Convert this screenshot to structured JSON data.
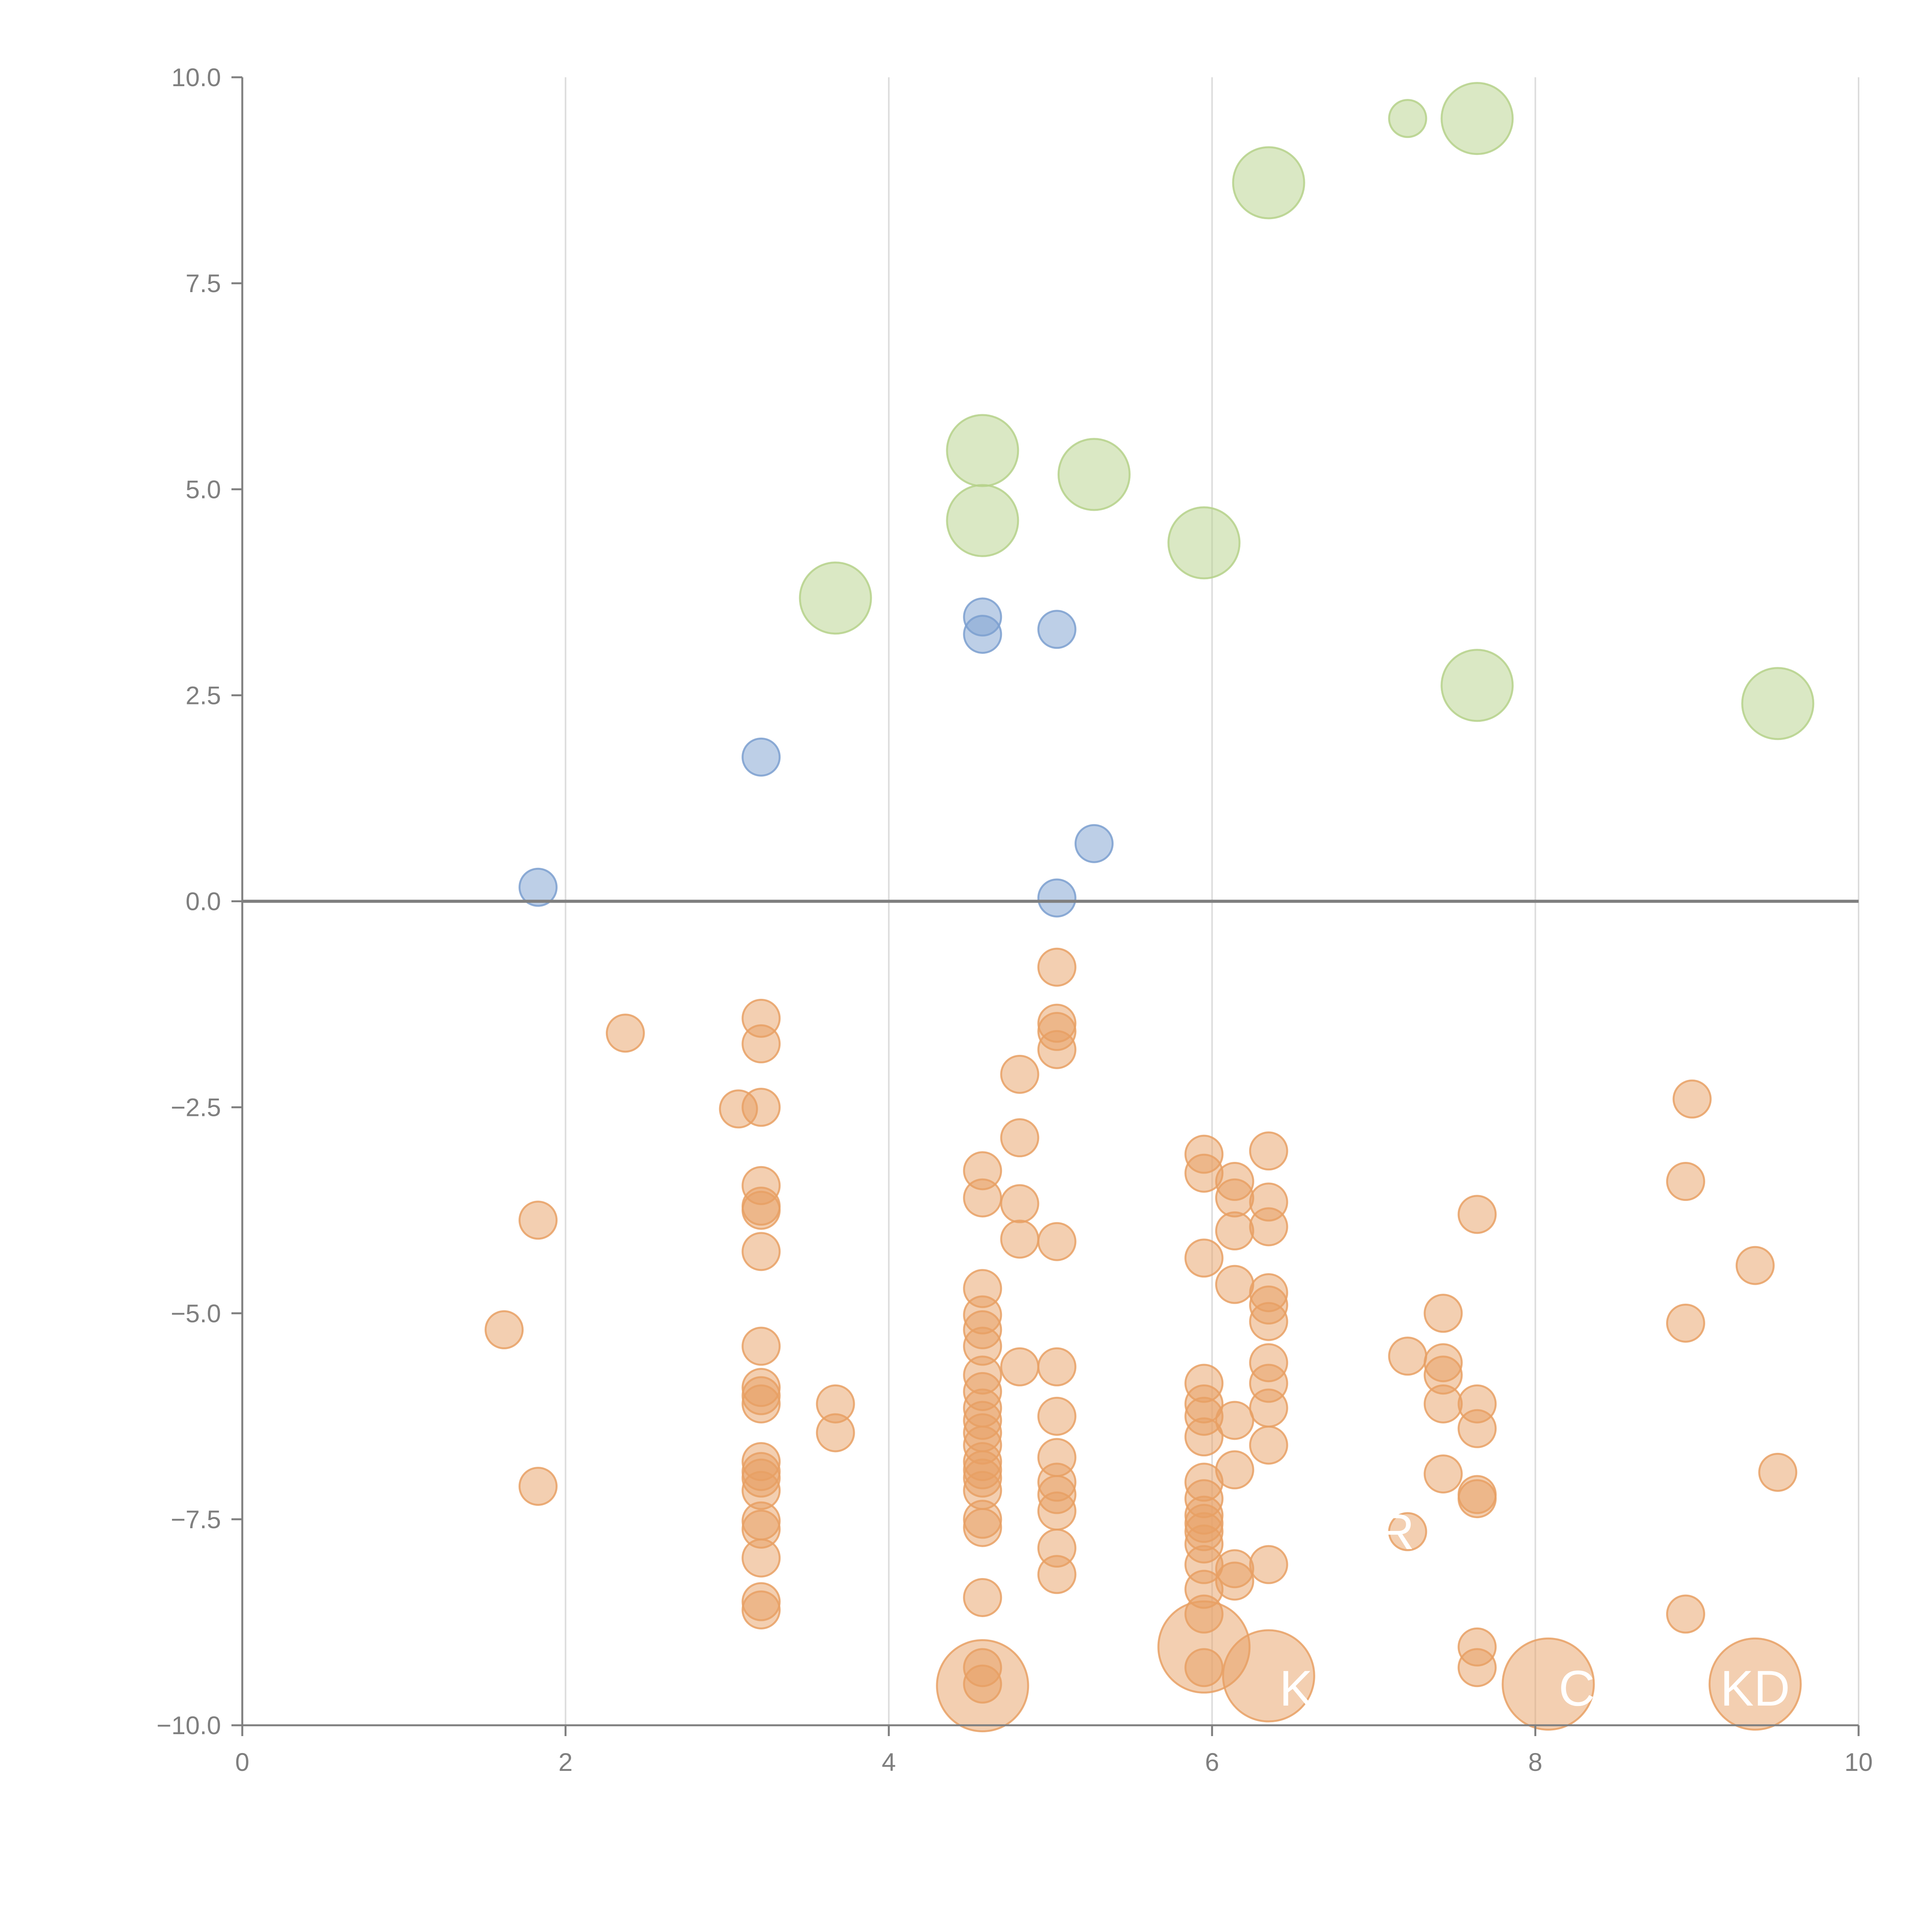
{
  "chart_data": {
    "type": "scatter",
    "title": "",
    "xlabel": "",
    "ylabel": "",
    "xlim": [
      0,
      10
    ],
    "ylim": [
      -10,
      10
    ],
    "x_ticks": [
      "0",
      "2",
      "4",
      "6",
      "8",
      "10"
    ],
    "y_ticks": [
      "−10.0",
      "−7.5",
      "−5.0",
      "−2.5",
      "0.0",
      "2.5",
      "5.0",
      "7.5",
      "10.0"
    ],
    "grid": "vertical",
    "colors": {
      "blue": "#7b9fcf",
      "green": "#b5d18a",
      "orange": "#e8a064"
    },
    "series": [
      {
        "name": "blue",
        "color": "#7b9fcf",
        "points": [
          {
            "x": 1.83,
            "y": 0.17,
            "r": 1
          },
          {
            "x": 3.21,
            "y": 1.75,
            "r": 1
          },
          {
            "x": 4.58,
            "y": 3.45,
            "r": 1
          },
          {
            "x": 4.58,
            "y": 3.24,
            "r": 1
          },
          {
            "x": 5.04,
            "y": 3.3,
            "r": 1
          },
          {
            "x": 5.27,
            "y": 0.7,
            "r": 1
          },
          {
            "x": 5.04,
            "y": 0.04,
            "r": 1
          }
        ]
      },
      {
        "name": "green",
        "color": "#b5d18a",
        "points": [
          {
            "x": 3.67,
            "y": 3.68,
            "r": 2
          },
          {
            "x": 4.58,
            "y": 5.47,
            "r": 2
          },
          {
            "x": 4.58,
            "y": 4.62,
            "r": 2
          },
          {
            "x": 5.27,
            "y": 5.18,
            "r": 2
          },
          {
            "x": 5.95,
            "y": 4.35,
            "r": 2
          },
          {
            "x": 6.35,
            "y": 8.72,
            "r": 2
          },
          {
            "x": 7.21,
            "y": 9.5,
            "r": 1
          },
          {
            "x": 7.64,
            "y": 9.5,
            "r": 2
          },
          {
            "x": 7.64,
            "y": 2.62,
            "r": 2
          },
          {
            "x": 9.5,
            "y": 2.4,
            "r": 2
          }
        ]
      },
      {
        "name": "orange",
        "color": "#e8a064",
        "points": [
          {
            "x": 1.62,
            "y": -5.2,
            "r": 1
          },
          {
            "x": 1.83,
            "y": -3.87,
            "r": 1
          },
          {
            "x": 1.83,
            "y": -7.1,
            "r": 1
          },
          {
            "x": 2.37,
            "y": -1.6,
            "r": 1
          },
          {
            "x": 3.07,
            "y": -2.52,
            "r": 1
          },
          {
            "x": 3.21,
            "y": -1.42,
            "r": 1
          },
          {
            "x": 3.21,
            "y": -1.73,
            "r": 1
          },
          {
            "x": 3.21,
            "y": -2.5,
            "r": 1
          },
          {
            "x": 3.21,
            "y": -3.45,
            "r": 1
          },
          {
            "x": 3.21,
            "y": -3.7,
            "r": 1
          },
          {
            "x": 3.21,
            "y": -3.75,
            "r": 1
          },
          {
            "x": 3.21,
            "y": -4.25,
            "r": 1
          },
          {
            "x": 3.21,
            "y": -5.4,
            "r": 1
          },
          {
            "x": 3.21,
            "y": -5.9,
            "r": 1
          },
          {
            "x": 3.21,
            "y": -6.0,
            "r": 1
          },
          {
            "x": 3.21,
            "y": -6.1,
            "r": 1
          },
          {
            "x": 3.21,
            "y": -6.8,
            "r": 1
          },
          {
            "x": 3.21,
            "y": -6.92,
            "r": 1
          },
          {
            "x": 3.21,
            "y": -7.0,
            "r": 1
          },
          {
            "x": 3.21,
            "y": -7.15,
            "r": 1
          },
          {
            "x": 3.21,
            "y": -7.52,
            "r": 1
          },
          {
            "x": 3.21,
            "y": -7.62,
            "r": 1
          },
          {
            "x": 3.21,
            "y": -7.97,
            "r": 1
          },
          {
            "x": 3.21,
            "y": -8.5,
            "r": 1
          },
          {
            "x": 3.21,
            "y": -8.6,
            "r": 1
          },
          {
            "x": 3.67,
            "y": -6.1,
            "r": 1
          },
          {
            "x": 3.67,
            "y": -6.45,
            "r": 1
          },
          {
            "x": 4.58,
            "y": -3.27,
            "r": 1
          },
          {
            "x": 4.58,
            "y": -3.6,
            "r": 1
          },
          {
            "x": 4.58,
            "y": -4.7,
            "r": 1
          },
          {
            "x": 4.58,
            "y": -5.02,
            "r": 1
          },
          {
            "x": 4.58,
            "y": -5.2,
            "r": 1
          },
          {
            "x": 4.58,
            "y": -5.4,
            "r": 1
          },
          {
            "x": 4.58,
            "y": -5.75,
            "r": 1
          },
          {
            "x": 4.58,
            "y": -5.95,
            "r": 1
          },
          {
            "x": 4.58,
            "y": -6.15,
            "r": 1
          },
          {
            "x": 4.58,
            "y": -6.3,
            "r": 1
          },
          {
            "x": 4.58,
            "y": -6.45,
            "r": 1
          },
          {
            "x": 4.58,
            "y": -6.6,
            "r": 1
          },
          {
            "x": 4.58,
            "y": -6.8,
            "r": 1
          },
          {
            "x": 4.58,
            "y": -6.9,
            "r": 1
          },
          {
            "x": 4.58,
            "y": -7.0,
            "r": 1
          },
          {
            "x": 4.58,
            "y": -7.15,
            "r": 1
          },
          {
            "x": 4.58,
            "y": -7.5,
            "r": 1
          },
          {
            "x": 4.58,
            "y": -7.6,
            "r": 1
          },
          {
            "x": 4.58,
            "y": -8.45,
            "r": 1
          },
          {
            "x": 4.58,
            "y": -9.3,
            "r": 1
          },
          {
            "x": 4.58,
            "y": -9.5,
            "r": 1
          },
          {
            "x": 4.58,
            "y": -9.52,
            "r": 3
          },
          {
            "x": 4.81,
            "y": -2.1,
            "r": 1
          },
          {
            "x": 4.81,
            "y": -2.87,
            "r": 1
          },
          {
            "x": 4.81,
            "y": -3.67,
            "r": 1
          },
          {
            "x": 4.81,
            "y": -4.1,
            "r": 1
          },
          {
            "x": 4.81,
            "y": -5.65,
            "r": 1
          },
          {
            "x": 5.04,
            "y": -0.8,
            "r": 1
          },
          {
            "x": 5.04,
            "y": -1.48,
            "r": 1
          },
          {
            "x": 5.04,
            "y": -1.58,
            "r": 1
          },
          {
            "x": 5.04,
            "y": -1.8,
            "r": 1
          },
          {
            "x": 5.04,
            "y": -4.13,
            "r": 1
          },
          {
            "x": 5.04,
            "y": -5.65,
            "r": 1
          },
          {
            "x": 5.04,
            "y": -6.25,
            "r": 1
          },
          {
            "x": 5.04,
            "y": -6.75,
            "r": 1
          },
          {
            "x": 5.04,
            "y": -7.05,
            "r": 1
          },
          {
            "x": 5.04,
            "y": -7.2,
            "r": 1
          },
          {
            "x": 5.04,
            "y": -7.4,
            "r": 1
          },
          {
            "x": 5.04,
            "y": -7.85,
            "r": 1
          },
          {
            "x": 5.04,
            "y": -8.17,
            "r": 1
          },
          {
            "x": 5.95,
            "y": -3.07,
            "r": 1
          },
          {
            "x": 5.95,
            "y": -3.3,
            "r": 1
          },
          {
            "x": 5.95,
            "y": -4.33,
            "r": 1
          },
          {
            "x": 5.95,
            "y": -5.85,
            "r": 1
          },
          {
            "x": 5.95,
            "y": -6.1,
            "r": 1
          },
          {
            "x": 5.95,
            "y": -6.25,
            "r": 1
          },
          {
            "x": 5.95,
            "y": -6.5,
            "r": 1
          },
          {
            "x": 5.95,
            "y": -7.05,
            "r": 1
          },
          {
            "x": 5.95,
            "y": -7.25,
            "r": 1
          },
          {
            "x": 5.95,
            "y": -7.45,
            "r": 1
          },
          {
            "x": 5.95,
            "y": -7.55,
            "r": 1
          },
          {
            "x": 5.95,
            "y": -7.65,
            "r": 1
          },
          {
            "x": 5.95,
            "y": -7.8,
            "r": 1
          },
          {
            "x": 5.95,
            "y": -8.05,
            "r": 1
          },
          {
            "x": 5.95,
            "y": -8.35,
            "r": 1
          },
          {
            "x": 5.95,
            "y": -8.65,
            "r": 1
          },
          {
            "x": 5.95,
            "y": -9.3,
            "r": 1
          },
          {
            "x": 5.95,
            "y": -9.05,
            "r": 3
          },
          {
            "x": 6.14,
            "y": -3.4,
            "r": 1
          },
          {
            "x": 6.14,
            "y": -3.6,
            "r": 1
          },
          {
            "x": 6.14,
            "y": -4.0,
            "r": 1
          },
          {
            "x": 6.14,
            "y": -4.65,
            "r": 1
          },
          {
            "x": 6.14,
            "y": -6.3,
            "r": 1
          },
          {
            "x": 6.14,
            "y": -6.9,
            "r": 1
          },
          {
            "x": 6.14,
            "y": -8.1,
            "r": 1
          },
          {
            "x": 6.14,
            "y": -8.25,
            "r": 1
          },
          {
            "x": 6.35,
            "y": -3.03,
            "r": 1
          },
          {
            "x": 6.35,
            "y": -3.65,
            "r": 1
          },
          {
            "x": 6.35,
            "y": -3.95,
            "r": 1
          },
          {
            "x": 6.35,
            "y": -4.75,
            "r": 1
          },
          {
            "x": 6.35,
            "y": -4.9,
            "r": 1
          },
          {
            "x": 6.35,
            "y": -5.1,
            "r": 1
          },
          {
            "x": 6.35,
            "y": -5.6,
            "r": 1
          },
          {
            "x": 6.35,
            "y": -5.85,
            "r": 1
          },
          {
            "x": 6.35,
            "y": -6.15,
            "r": 1
          },
          {
            "x": 6.35,
            "y": -6.6,
            "r": 1
          },
          {
            "x": 6.35,
            "y": -8.05,
            "r": 1
          },
          {
            "x": 6.35,
            "y": -9.4,
            "r": 3
          },
          {
            "x": 7.21,
            "y": -5.52,
            "r": 1
          },
          {
            "x": 7.21,
            "y": -7.65,
            "r": 1
          },
          {
            "x": 7.43,
            "y": -5.0,
            "r": 1
          },
          {
            "x": 7.43,
            "y": -5.6,
            "r": 1
          },
          {
            "x": 7.43,
            "y": -5.75,
            "r": 1
          },
          {
            "x": 7.43,
            "y": -6.1,
            "r": 1
          },
          {
            "x": 7.43,
            "y": -6.95,
            "r": 1
          },
          {
            "x": 7.64,
            "y": -3.8,
            "r": 1
          },
          {
            "x": 7.64,
            "y": -6.1,
            "r": 1
          },
          {
            "x": 7.64,
            "y": -6.4,
            "r": 1
          },
          {
            "x": 7.64,
            "y": -7.2,
            "r": 1
          },
          {
            "x": 7.64,
            "y": -7.25,
            "r": 1
          },
          {
            "x": 7.64,
            "y": -9.05,
            "r": 1
          },
          {
            "x": 7.64,
            "y": -9.3,
            "r": 1
          },
          {
            "x": 8.08,
            "y": -9.5,
            "r": 3
          },
          {
            "x": 8.93,
            "y": -3.4,
            "r": 1
          },
          {
            "x": 8.93,
            "y": -5.12,
            "r": 1
          },
          {
            "x": 8.93,
            "y": -8.65,
            "r": 1
          },
          {
            "x": 8.97,
            "y": -2.4,
            "r": 1
          },
          {
            "x": 9.36,
            "y": -4.42,
            "r": 1
          },
          {
            "x": 9.36,
            "y": -9.5,
            "r": 3
          },
          {
            "x": 9.5,
            "y": -6.93,
            "r": 1
          }
        ]
      }
    ],
    "bubble_labels": [
      {
        "text": "R",
        "x": 7.14,
        "y": -7.65
      },
      {
        "text": "K",
        "x": 6.52,
        "y": -9.55
      },
      {
        "text": "CA",
        "x": 8.36,
        "y": -9.55
      },
      {
        "text": "KD",
        "x": 9.36,
        "y": -9.55
      }
    ]
  }
}
